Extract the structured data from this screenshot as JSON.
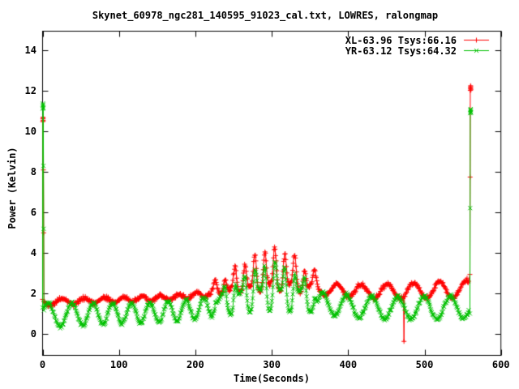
{
  "chart_data": {
    "type": "line",
    "title": "Skynet_60978_ngc281_140595_91023_cal.txt, LOWRES, ralongmap",
    "xlabel": "Time(Seconds)",
    "ylabel": "Power (Kelvin)",
    "xlim": [
      0,
      600
    ],
    "ylim": [
      -1.04,
      14.94
    ],
    "x_ticks": [
      0,
      100,
      200,
      300,
      400,
      500,
      600
    ],
    "y_ticks": [
      0,
      2,
      4,
      6,
      8,
      10,
      12,
      14
    ],
    "grid": false,
    "legend_position": "top-right-inside",
    "tick_style": "inward-mirrored",
    "background": "#ffffff",
    "axis_color": "#000000",
    "sampling": {
      "interval_s": 0.7,
      "t_start": 2,
      "t_end": 558,
      "noise_seed": 42
    },
    "oscillation": {
      "period_control": [
        [
          0,
          34
        ],
        [
          80,
          25
        ],
        [
          200,
          23
        ],
        [
          300,
          26
        ],
        [
          430,
          34
        ],
        [
          600,
          35
        ]
      ]
    },
    "source_spikes": {
      "times": [
        226,
        239,
        252,
        265,
        278,
        291,
        304,
        317,
        330,
        343,
        356
      ],
      "sigma_s": 2.0
    },
    "series": [
      {
        "id": "XL",
        "label": "XL-63.96 Tsys:66.16",
        "color": "#ff0000",
        "marker": "plus",
        "mean_start": 1.58,
        "drift_per_s": 0.00115,
        "source_bump": {
          "center_s": 300,
          "sigma_s": 65,
          "height_k": 0.35
        },
        "osc_amp_control": [
          [
            0,
            0.14
          ],
          [
            250,
            0.13
          ],
          [
            380,
            0.3
          ],
          [
            600,
            0.47
          ]
        ],
        "osc_phase0_rad": -3.47,
        "spike_heights_k": [
          0.5,
          0.75,
          1.05,
          1.35,
          1.6,
          1.85,
          1.95,
          1.8,
          1.5,
          1.1,
          0.65
        ],
        "noise_sd_k": 0.05,
        "cal_start_points": [
          [
            0.0,
            1.72
          ],
          [
            0.2,
            10.48
          ],
          [
            0.35,
            10.62
          ],
          [
            0.5,
            10.7
          ],
          [
            0.65,
            10.55
          ],
          [
            0.8,
            10.65
          ],
          [
            0.95,
            10.52
          ],
          [
            1.15,
            8.1
          ],
          [
            1.45,
            5.0
          ],
          [
            1.8,
            1.62
          ]
        ],
        "cal_end_points": [
          [
            559.4,
            2.95
          ],
          [
            559.7,
            7.75
          ],
          [
            559.9,
            12.02
          ],
          [
            560.05,
            12.18
          ],
          [
            560.2,
            12.1
          ],
          [
            560.35,
            12.25
          ],
          [
            560.5,
            12.12
          ],
          [
            560.65,
            12.2
          ],
          [
            560.8,
            12.05
          ]
        ],
        "anomalies": [
          {
            "t_s": 473,
            "value_k": -0.35
          }
        ]
      },
      {
        "id": "YR",
        "label": "YR-63.12 Tsys:64.32",
        "color": "#00c000",
        "marker": "cross",
        "mean_start": 0.95,
        "drift_per_s": 0.0007,
        "source_bump": {
          "center_s": 300,
          "sigma_s": 65,
          "height_k": 0.5
        },
        "osc_amp_control": [
          [
            0,
            0.6
          ],
          [
            100,
            0.5
          ],
          [
            300,
            0.52
          ],
          [
            600,
            0.58
          ]
        ],
        "osc_phase0_rad": -6.02,
        "spike_heights_k": [
          0.4,
          0.65,
          0.95,
          1.25,
          1.5,
          1.75,
          1.85,
          1.7,
          1.4,
          1.0,
          0.55
        ],
        "noise_sd_k": 0.05,
        "cal_start_points": [
          [
            0.0,
            1.32
          ],
          [
            0.2,
            11.12
          ],
          [
            0.35,
            11.28
          ],
          [
            0.5,
            11.38
          ],
          [
            0.65,
            11.2
          ],
          [
            0.8,
            11.32
          ],
          [
            0.95,
            11.15
          ],
          [
            1.15,
            8.3
          ],
          [
            1.45,
            5.2
          ],
          [
            1.8,
            1.18
          ]
        ],
        "cal_end_points": [
          [
            559.4,
            1.02
          ],
          [
            559.7,
            6.22
          ],
          [
            559.9,
            10.9
          ],
          [
            560.05,
            11.05
          ],
          [
            560.2,
            10.95
          ],
          [
            560.35,
            11.1
          ],
          [
            560.5,
            10.98
          ],
          [
            560.65,
            11.06
          ],
          [
            560.8,
            10.92
          ]
        ],
        "anomalies": []
      }
    ]
  }
}
